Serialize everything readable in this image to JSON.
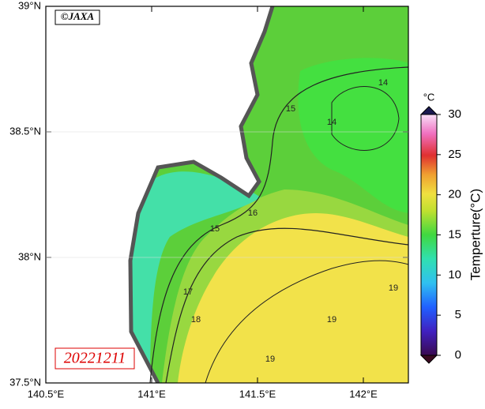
{
  "map": {
    "copyright": "©JAXA",
    "date": "20221211",
    "lon_ticks": [
      {
        "value": 140.5,
        "label": "140.5°E"
      },
      {
        "value": 141,
        "label": "141°E"
      },
      {
        "value": 141.5,
        "label": "141.5°E"
      },
      {
        "value": 142,
        "label": "142°E"
      }
    ],
    "lat_ticks": [
      {
        "value": 37.5,
        "label": "37.5°N"
      },
      {
        "value": 38,
        "label": "38°N"
      },
      {
        "value": 38.5,
        "label": "38.5°N"
      },
      {
        "value": 39,
        "label": "39°N"
      }
    ],
    "contour_labels": [
      "14",
      "14",
      "15",
      "16",
      "15",
      "17",
      "18",
      "19",
      "19",
      "19"
    ]
  },
  "colorbar": {
    "unit": "°C",
    "title": "Temperture(°C)",
    "range": [
      0,
      30
    ],
    "ticks": [
      0,
      5,
      10,
      15,
      20,
      25,
      30
    ]
  }
}
